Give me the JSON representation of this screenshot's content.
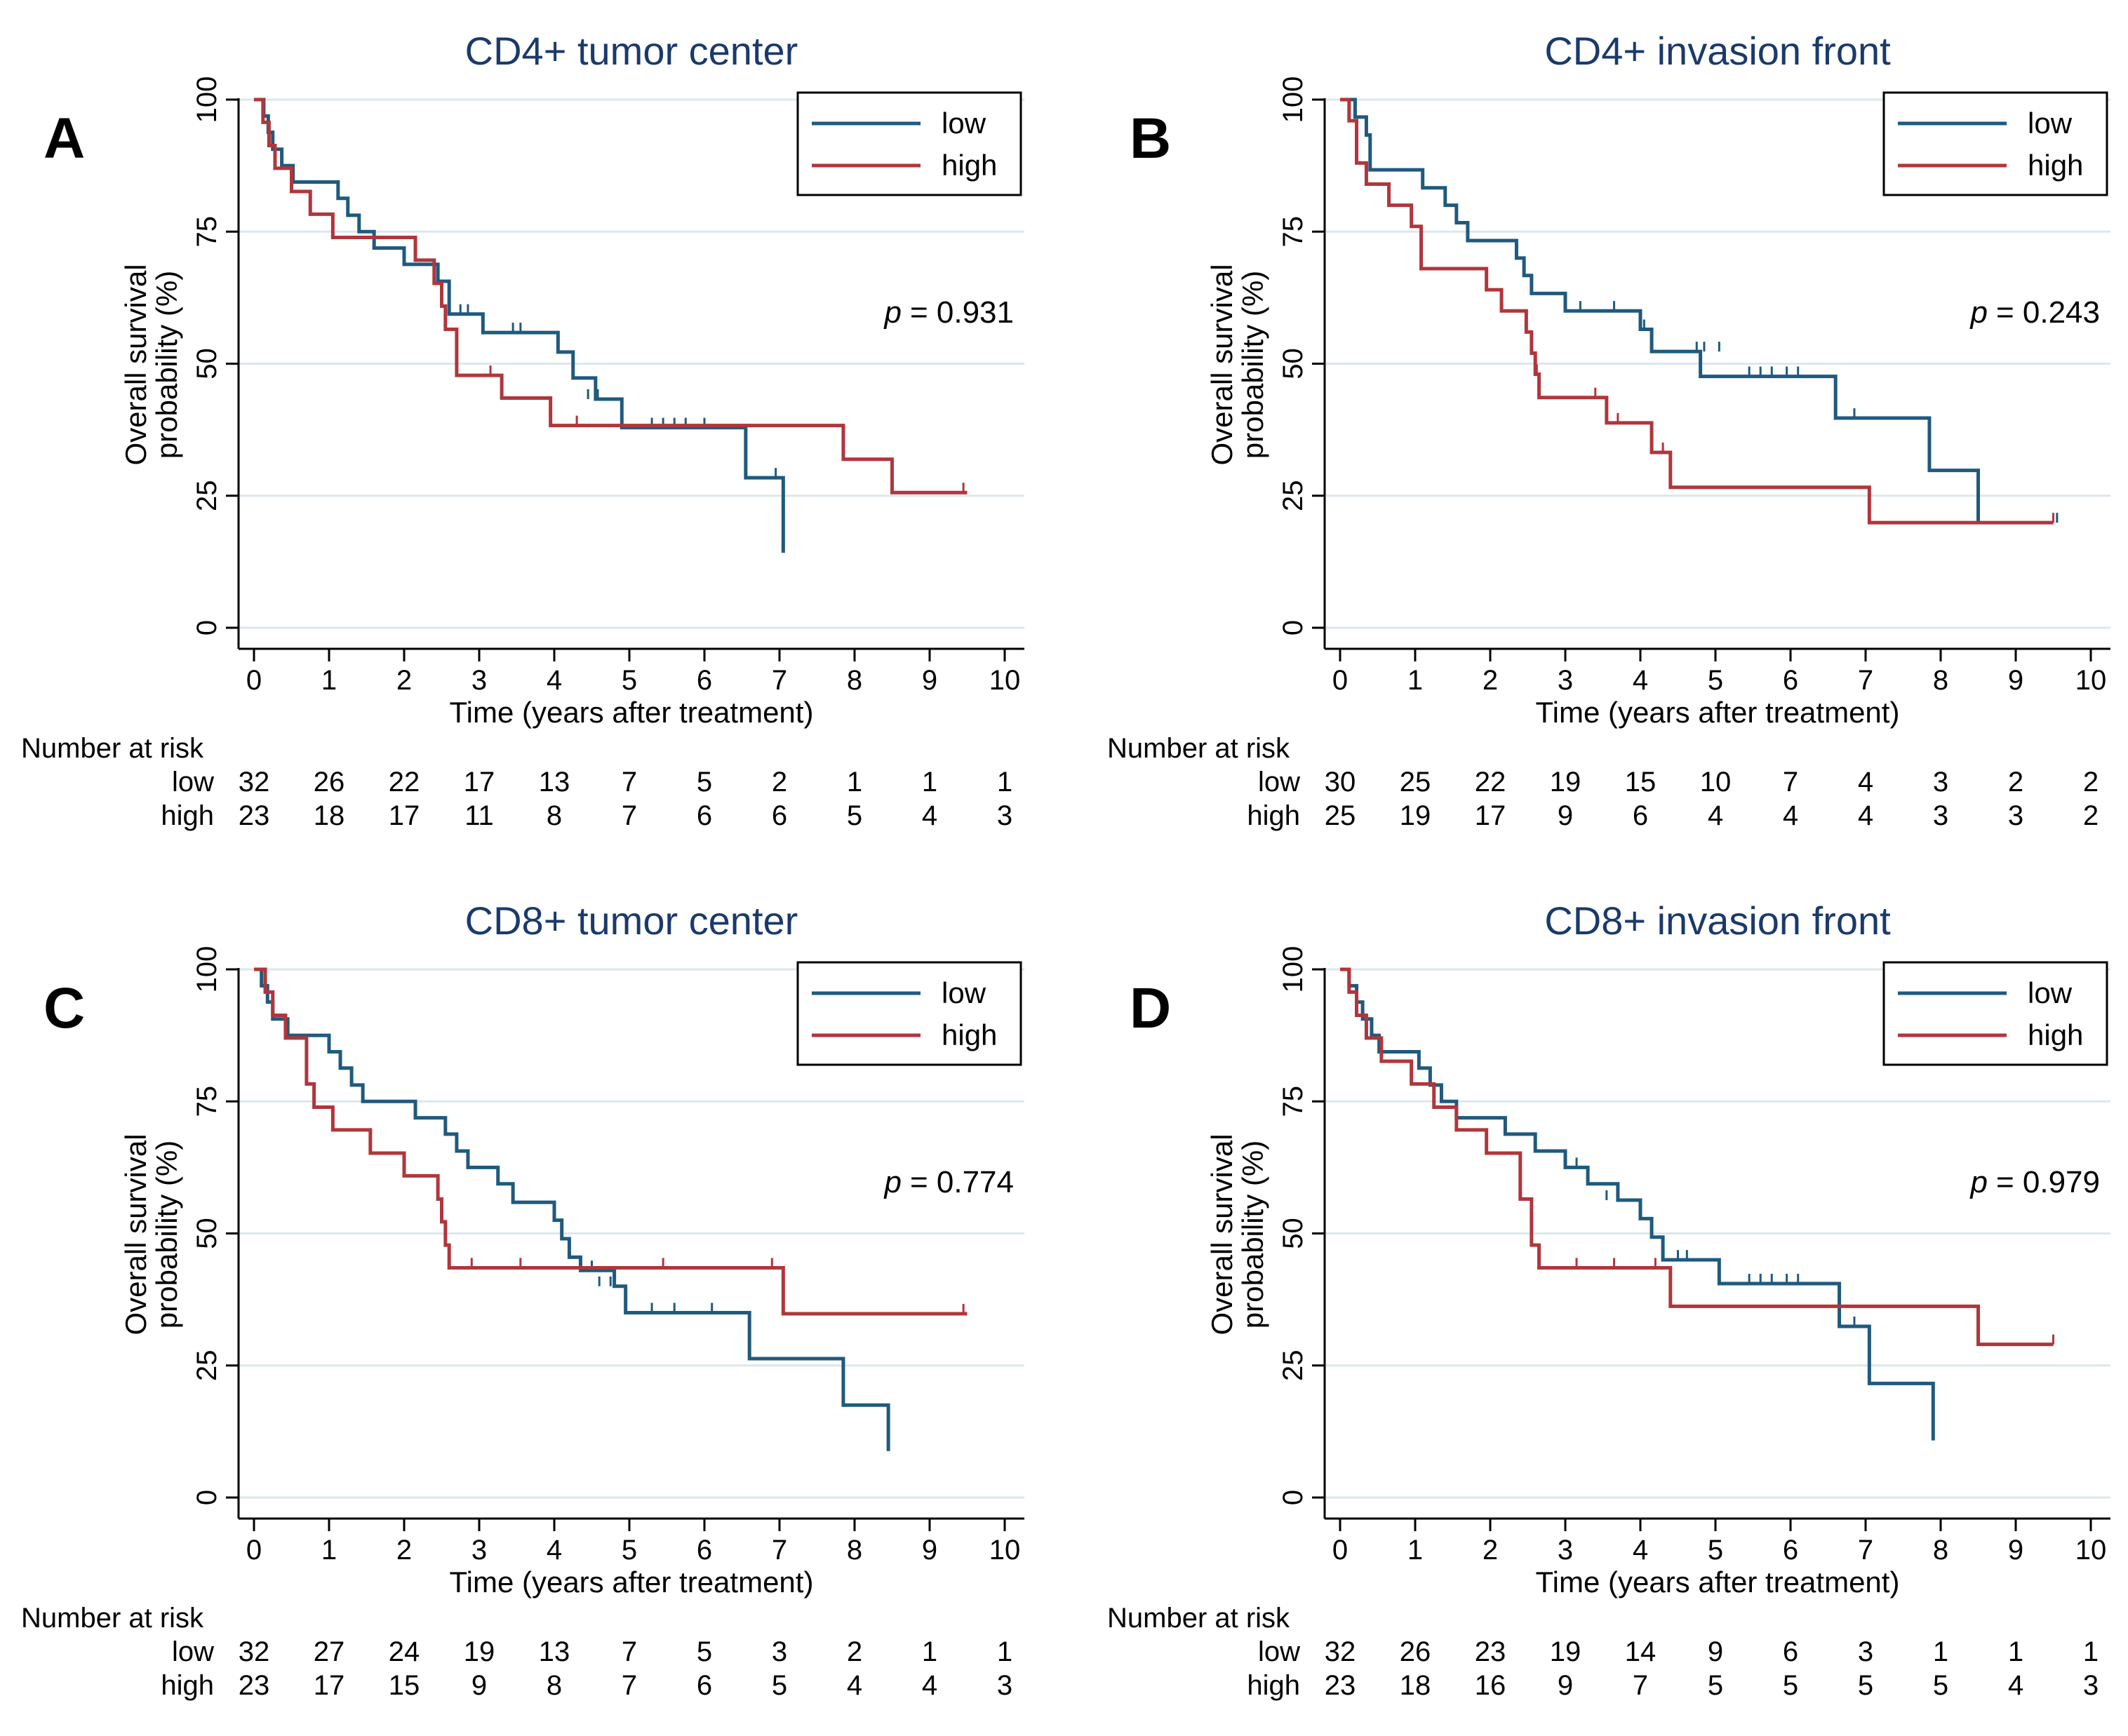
{
  "figure": {
    "axis_common": {
      "xlabel": "Time (years after treatment)",
      "ylabel_line1": "Overall survival",
      "ylabel_line2": "probability (%)",
      "xlim": [
        0,
        10
      ],
      "ylim": [
        0,
        100
      ],
      "xticks": [
        "0",
        "1",
        "2",
        "3",
        "4",
        "5",
        "6",
        "7",
        "8",
        "9",
        "10"
      ],
      "yticks": [
        "0",
        "25",
        "50",
        "75",
        "100"
      ],
      "risk_header": "Number at risk",
      "group_labels": [
        "low",
        "high"
      ]
    },
    "colors": {
      "low": "#1f5a7e",
      "high": "#b0363c",
      "title": "#1a3a6b",
      "grid": "#dde7ec"
    },
    "p_prefix": "p",
    "panels": [
      {
        "letter": "A",
        "title": "CD4+ tumor center",
        "p_value": "= 0.931",
        "risk_low": [
          "32",
          "26",
          "22",
          "17",
          "13",
          "7",
          "5",
          "2",
          "1",
          "1",
          "1"
        ],
        "risk_high": [
          "23",
          "18",
          "17",
          "11",
          "8",
          "7",
          "6",
          "6",
          "5",
          "4",
          "3"
        ]
      },
      {
        "letter": "B",
        "title": "CD4+ invasion front",
        "p_value": "= 0.243",
        "risk_low": [
          "30",
          "25",
          "22",
          "19",
          "15",
          "10",
          "7",
          "4",
          "3",
          "2",
          "2"
        ],
        "risk_high": [
          "25",
          "19",
          "17",
          "9",
          "6",
          "4",
          "4",
          "4",
          "3",
          "3",
          "2"
        ]
      },
      {
        "letter": "C",
        "title": "CD8+ tumor center",
        "p_value": "= 0.774",
        "risk_low": [
          "32",
          "27",
          "24",
          "19",
          "13",
          "7",
          "5",
          "3",
          "2",
          "1",
          "1"
        ],
        "risk_high": [
          "23",
          "17",
          "15",
          "9",
          "8",
          "7",
          "6",
          "5",
          "4",
          "4",
          "3"
        ]
      },
      {
        "letter": "D",
        "title": "CD8+ invasion front",
        "p_value": "= 0.979",
        "risk_low": [
          "32",
          "26",
          "23",
          "19",
          "14",
          "9",
          "6",
          "3",
          "1",
          "1",
          "1"
        ],
        "risk_high": [
          "23",
          "18",
          "16",
          "9",
          "7",
          "5",
          "5",
          "5",
          "5",
          "4",
          "3"
        ]
      }
    ]
  },
  "chart_data": [
    {
      "type": "line",
      "subtype": "kaplan-meier step",
      "title": "CD4+ tumor center",
      "xlabel": "Time (years after treatment)",
      "ylabel": "Overall survival probability (%)",
      "xlim": [
        0,
        10
      ],
      "ylim": [
        0,
        100
      ],
      "legend": "top-right",
      "series": [
        {
          "name": "low",
          "x": [
            0,
            0.13,
            0.19,
            0.25,
            0.37,
            0.52,
            1.0,
            1.12,
            1.25,
            1.4,
            1.6,
            2.0,
            2.45,
            2.6,
            3.05,
            4.05,
            4.25,
            4.55,
            4.9,
            6.55,
            7.05
          ],
          "y": [
            100,
            96.9,
            93.8,
            90.6,
            87.5,
            84.4,
            84.4,
            81.3,
            78.1,
            75,
            71.9,
            68.8,
            65.6,
            59.4,
            55.9,
            52.2,
            47.3,
            43.3,
            37.9,
            28.4,
            14.2
          ],
          "censor_x": [
            2.75,
            2.85,
            3.45,
            3.55,
            4.45,
            4.58,
            5.3,
            5.45,
            5.6,
            5.75,
            6.0,
            6.95
          ],
          "censor_y": [
            59.4,
            59.4,
            55.9,
            55.9,
            43.3,
            43.3,
            37.9,
            37.9,
            37.9,
            37.9,
            37.9,
            28.4
          ]
        },
        {
          "name": "high",
          "x": [
            0,
            0.12,
            0.2,
            0.28,
            0.5,
            0.75,
            1.05,
            2.15,
            2.4,
            2.5,
            2.55,
            2.7,
            3.3,
            3.95,
            7.85,
            8.5,
            9.5
          ],
          "y": [
            100,
            95.7,
            91.3,
            87.0,
            82.6,
            78.3,
            73.9,
            69.6,
            65.2,
            60.9,
            56.5,
            47.8,
            43.5,
            38.3,
            31.9,
            25.6,
            25.6
          ],
          "censor_x": [
            3.15,
            4.3,
            9.45
          ],
          "censor_y": [
            47.8,
            38.3,
            25.6
          ]
        }
      ],
      "annotation": "p = 0.931"
    },
    {
      "type": "line",
      "subtype": "kaplan-meier step",
      "title": "CD4+ invasion front",
      "xlabel": "Time (years after treatment)",
      "ylabel": "Overall survival probability (%)",
      "xlim": [
        0,
        10
      ],
      "ylim": [
        0,
        100
      ],
      "legend": "top-right",
      "series": [
        {
          "name": "low",
          "x": [
            0,
            0.2,
            0.35,
            0.4,
            1.1,
            1.4,
            1.55,
            1.7,
            2.35,
            2.45,
            2.55,
            3.0,
            4.0,
            4.15,
            4.8,
            6.6,
            7.85,
            8.5
          ],
          "y": [
            100,
            96.7,
            93.3,
            86.7,
            83.3,
            80.0,
            76.7,
            73.3,
            70.0,
            66.7,
            63.3,
            60.0,
            56.5,
            52.3,
            47.6,
            39.7,
            29.8,
            19.9
          ],
          "censor_x": [
            3.2,
            3.65,
            4.05,
            4.75,
            4.85,
            5.05,
            5.45,
            5.6,
            5.75,
            5.95,
            6.1,
            6.85,
            9.55
          ],
          "censor_y": [
            60.0,
            60.0,
            56.5,
            52.3,
            52.3,
            52.3,
            47.6,
            47.6,
            47.6,
            47.6,
            47.6,
            39.7,
            19.9
          ]
        },
        {
          "name": "high",
          "x": [
            0,
            0.12,
            0.22,
            0.35,
            0.65,
            0.95,
            1.08,
            1.95,
            2.15,
            2.48,
            2.55,
            2.6,
            2.65,
            3.55,
            4.15,
            4.4,
            7.05,
            9.5
          ],
          "y": [
            100,
            96.0,
            88.0,
            84.0,
            80.0,
            76.0,
            68.0,
            64.0,
            60.0,
            56.0,
            52.0,
            48.0,
            43.6,
            38.8,
            33.2,
            26.6,
            19.9,
            19.9
          ],
          "censor_x": [
            2.62,
            3.4,
            3.7,
            4.3,
            9.5
          ],
          "censor_y": [
            48.0,
            43.6,
            38.8,
            33.2,
            19.9
          ]
        }
      ],
      "annotation": "p = 0.243"
    },
    {
      "type": "line",
      "subtype": "kaplan-meier step",
      "title": "CD8+ tumor center",
      "xlabel": "Time (years after treatment)",
      "ylabel": "Overall survival probability (%)",
      "xlim": [
        0,
        10
      ],
      "ylim": [
        0,
        100
      ],
      "legend": "top-right",
      "series": [
        {
          "name": "low",
          "x": [
            0,
            0.1,
            0.18,
            0.25,
            0.45,
            1.0,
            1.15,
            1.3,
            1.45,
            2.15,
            2.55,
            2.7,
            2.85,
            3.25,
            3.45,
            4.0,
            4.1,
            4.2,
            4.35,
            4.8,
            4.95,
            6.6,
            7.85,
            8.45
          ],
          "y": [
            100,
            96.9,
            93.8,
            90.6,
            87.5,
            84.4,
            81.3,
            78.1,
            75.0,
            71.9,
            68.8,
            65.6,
            62.5,
            59.4,
            55.9,
            52.5,
            49.0,
            45.5,
            43.0,
            40.0,
            35.0,
            26.3,
            17.5,
            8.8
          ],
          "censor_x": [
            4.5,
            4.6,
            4.75,
            5.3,
            5.6,
            6.1
          ],
          "censor_y": [
            43.0,
            40.0,
            40.0,
            35.0,
            35.0,
            35.0
          ]
        },
        {
          "name": "high",
          "x": [
            0,
            0.15,
            0.25,
            0.42,
            0.7,
            0.8,
            1.05,
            1.55,
            2.0,
            2.45,
            2.5,
            2.55,
            2.6,
            2.65,
            7.05,
            9.5
          ],
          "y": [
            100,
            95.7,
            91.3,
            87.0,
            78.3,
            73.9,
            69.6,
            65.2,
            60.9,
            56.5,
            52.2,
            47.8,
            43.5,
            43.5,
            34.8,
            34.8
          ],
          "censor_x": [
            2.9,
            3.55,
            5.45,
            6.9,
            9.45
          ],
          "censor_y": [
            43.5,
            43.5,
            43.5,
            43.5,
            34.8
          ]
        }
      ],
      "annotation": "p = 0.774"
    },
    {
      "type": "line",
      "subtype": "kaplan-meier step",
      "title": "CD8+ invasion front",
      "xlabel": "Time (years after treatment)",
      "ylabel": "Overall survival probability (%)",
      "xlim": [
        0,
        10
      ],
      "ylim": [
        0,
        100
      ],
      "legend": "top-right",
      "series": [
        {
          "name": "low",
          "x": [
            0,
            0.12,
            0.22,
            0.3,
            0.42,
            0.52,
            1.05,
            1.2,
            1.35,
            1.55,
            1.75,
            2.2,
            2.6,
            3.0,
            3.3,
            3.7,
            4.0,
            4.15,
            4.3,
            4.55,
            5.05,
            6.65,
            7.05,
            7.9
          ],
          "y": [
            100,
            96.9,
            93.8,
            90.6,
            87.5,
            84.4,
            81.3,
            78.1,
            75.0,
            71.9,
            71.9,
            68.8,
            65.6,
            62.5,
            59.4,
            56.3,
            52.8,
            49.3,
            45.0,
            45.0,
            40.5,
            32.4,
            21.6,
            10.8
          ],
          "censor_x": [
            3.15,
            3.55,
            4.5,
            4.62,
            5.45,
            5.6,
            5.75,
            5.95,
            6.1,
            6.85
          ],
          "censor_y": [
            62.5,
            56.3,
            45.0,
            45.0,
            40.5,
            40.5,
            40.5,
            40.5,
            40.5,
            32.4
          ]
        },
        {
          "name": "high",
          "x": [
            0,
            0.12,
            0.22,
            0.35,
            0.55,
            0.95,
            1.25,
            1.55,
            1.95,
            2.4,
            2.55,
            2.65,
            4.4,
            8.5,
            9.5
          ],
          "y": [
            100,
            95.7,
            91.3,
            87.0,
            82.6,
            78.3,
            73.9,
            69.6,
            65.2,
            56.5,
            47.8,
            43.5,
            36.2,
            29.0,
            29.0
          ],
          "censor_x": [
            3.15,
            3.65,
            4.2,
            9.5
          ],
          "censor_y": [
            43.5,
            43.5,
            43.5,
            29.0
          ]
        }
      ],
      "annotation": "p = 0.979"
    }
  ]
}
